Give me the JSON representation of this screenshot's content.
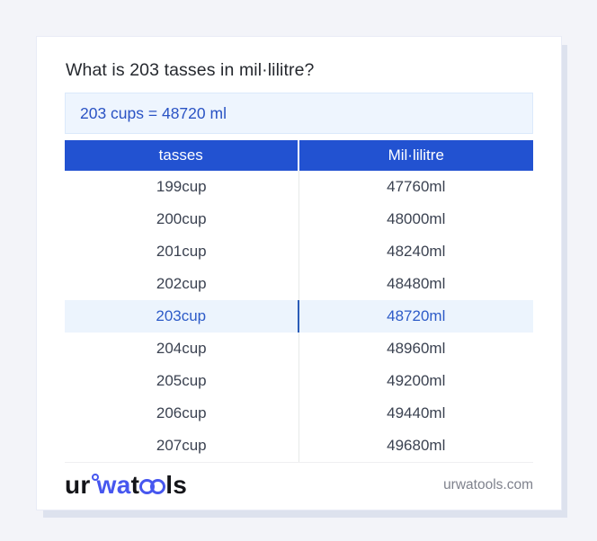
{
  "title": "What is 203 tasses in mil·lilitre?",
  "answer": "203 cups = 48720 ml",
  "table": {
    "headers": [
      "tasses",
      "Mil·lilitre"
    ],
    "rows": [
      {
        "tasses": "199cup",
        "ml": "47760ml",
        "highlighted": false
      },
      {
        "tasses": "200cup",
        "ml": "48000ml",
        "highlighted": false
      },
      {
        "tasses": "201cup",
        "ml": "48240ml",
        "highlighted": false
      },
      {
        "tasses": "202cup",
        "ml": "48480ml",
        "highlighted": false
      },
      {
        "tasses": "203cup",
        "ml": "48720ml",
        "highlighted": true
      },
      {
        "tasses": "204cup",
        "ml": "48960ml",
        "highlighted": false
      },
      {
        "tasses": "205cup",
        "ml": "49200ml",
        "highlighted": false
      },
      {
        "tasses": "206cup",
        "ml": "49440ml",
        "highlighted": false
      },
      {
        "tasses": "207cup",
        "ml": "49680ml",
        "highlighted": false
      }
    ]
  },
  "footer": {
    "logo": {
      "p1": "ur",
      "p2": "wa",
      "p3": "t",
      "p4": "ls"
    },
    "site": "urwatools.com"
  },
  "colors": {
    "page_bg": "#f3f4f9",
    "header_blue": "#2252d1",
    "answer_text_blue": "#2a53c4",
    "answer_bg": "#eef5fe",
    "highlight_row_bg": "#ecf4fd",
    "highlight_text_blue": "#2d5bc8",
    "body_text": "#3b4251",
    "logo_blue": "#4757ef",
    "footer_gray": "#7f828d"
  }
}
